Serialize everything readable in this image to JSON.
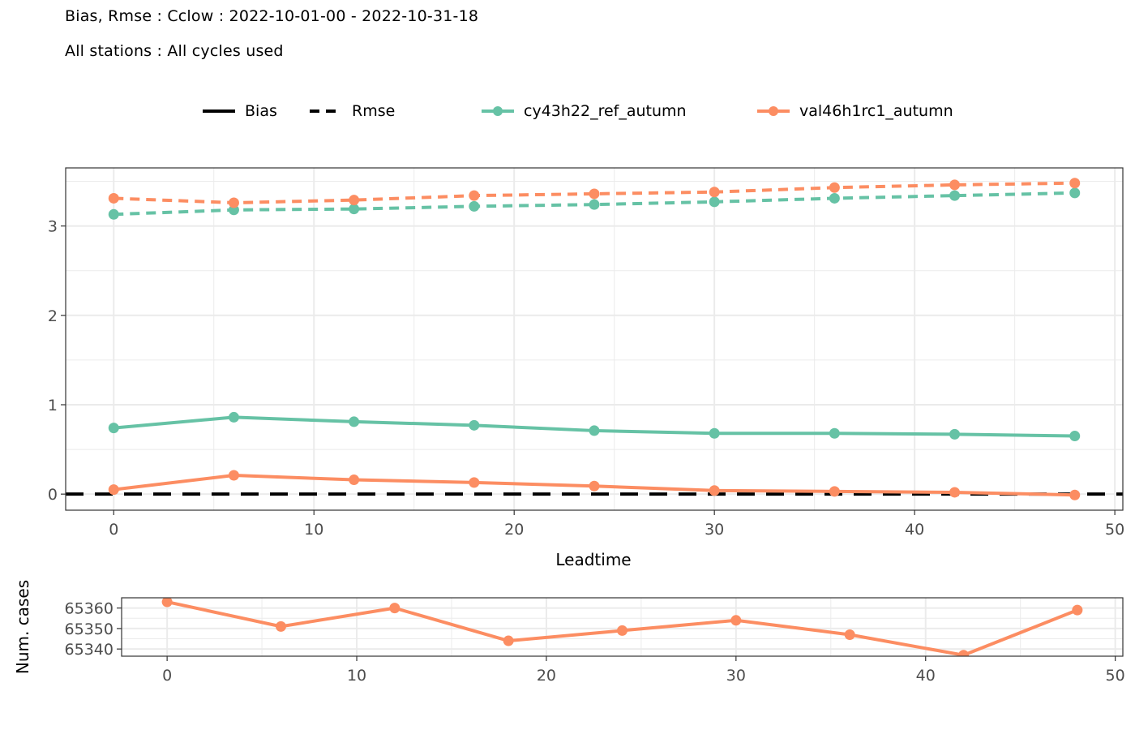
{
  "title": "Bias, Rmse : Cclow : 2022-10-01-00 - 2022-10-31-18",
  "subtitle": "All stations : All cycles used",
  "legend": {
    "linetype": [
      {
        "label": "Bias",
        "style": "solid"
      },
      {
        "label": "Rmse",
        "style": "dashed"
      }
    ],
    "models": [
      {
        "label": "cy43h22_ref_autumn",
        "color": "#66c2a5"
      },
      {
        "label": "val46h1rc1_autumn",
        "color": "#fc8d62"
      }
    ]
  },
  "chart_data": [
    {
      "type": "line",
      "xlabel": "Leadtime",
      "ylabel": "",
      "xlim": [
        -2.4,
        50.4
      ],
      "ylim": [
        -0.18,
        3.65
      ],
      "xticks": [
        0,
        10,
        20,
        30,
        40,
        50
      ],
      "yticks": [
        0,
        1,
        2,
        3
      ],
      "x": [
        0,
        6,
        12,
        18,
        24,
        30,
        36,
        42,
        48
      ],
      "grid": true,
      "reference_line": {
        "y": 0,
        "style": "dashed",
        "color": "#000000"
      },
      "series": [
        {
          "name": "cy43h22_ref_autumn",
          "metric": "Bias",
          "style": "solid",
          "color": "#66c2a5",
          "values": [
            0.74,
            0.86,
            0.81,
            0.77,
            0.71,
            0.68,
            0.68,
            0.67,
            0.65
          ]
        },
        {
          "name": "val46h1rc1_autumn",
          "metric": "Bias",
          "style": "solid",
          "color": "#fc8d62",
          "values": [
            0.05,
            0.21,
            0.16,
            0.13,
            0.09,
            0.04,
            0.03,
            0.02,
            -0.01
          ]
        },
        {
          "name": "cy43h22_ref_autumn",
          "metric": "Rmse",
          "style": "dashed",
          "color": "#66c2a5",
          "values": [
            3.13,
            3.18,
            3.19,
            3.22,
            3.24,
            3.27,
            3.31,
            3.34,
            3.37
          ]
        },
        {
          "name": "val46h1rc1_autumn",
          "metric": "Rmse",
          "style": "dashed",
          "color": "#fc8d62",
          "values": [
            3.31,
            3.26,
            3.29,
            3.34,
            3.36,
            3.38,
            3.43,
            3.46,
            3.48
          ]
        }
      ]
    },
    {
      "type": "line",
      "xlabel": "",
      "ylabel": "Num. cases",
      "xlim": [
        -2.4,
        50.4
      ],
      "ylim": [
        65336.5,
        65365
      ],
      "xticks": [
        0,
        10,
        20,
        30,
        40,
        50
      ],
      "yticks": [
        65340,
        65350,
        65360
      ],
      "x": [
        0,
        6,
        12,
        18,
        24,
        30,
        36,
        42,
        48
      ],
      "grid": true,
      "series": [
        {
          "name": "val46h1rc1_autumn",
          "color": "#fc8d62",
          "values": [
            65363,
            65351,
            65360,
            65344,
            65349,
            65354,
            65347,
            65337,
            65359
          ]
        }
      ]
    }
  ]
}
